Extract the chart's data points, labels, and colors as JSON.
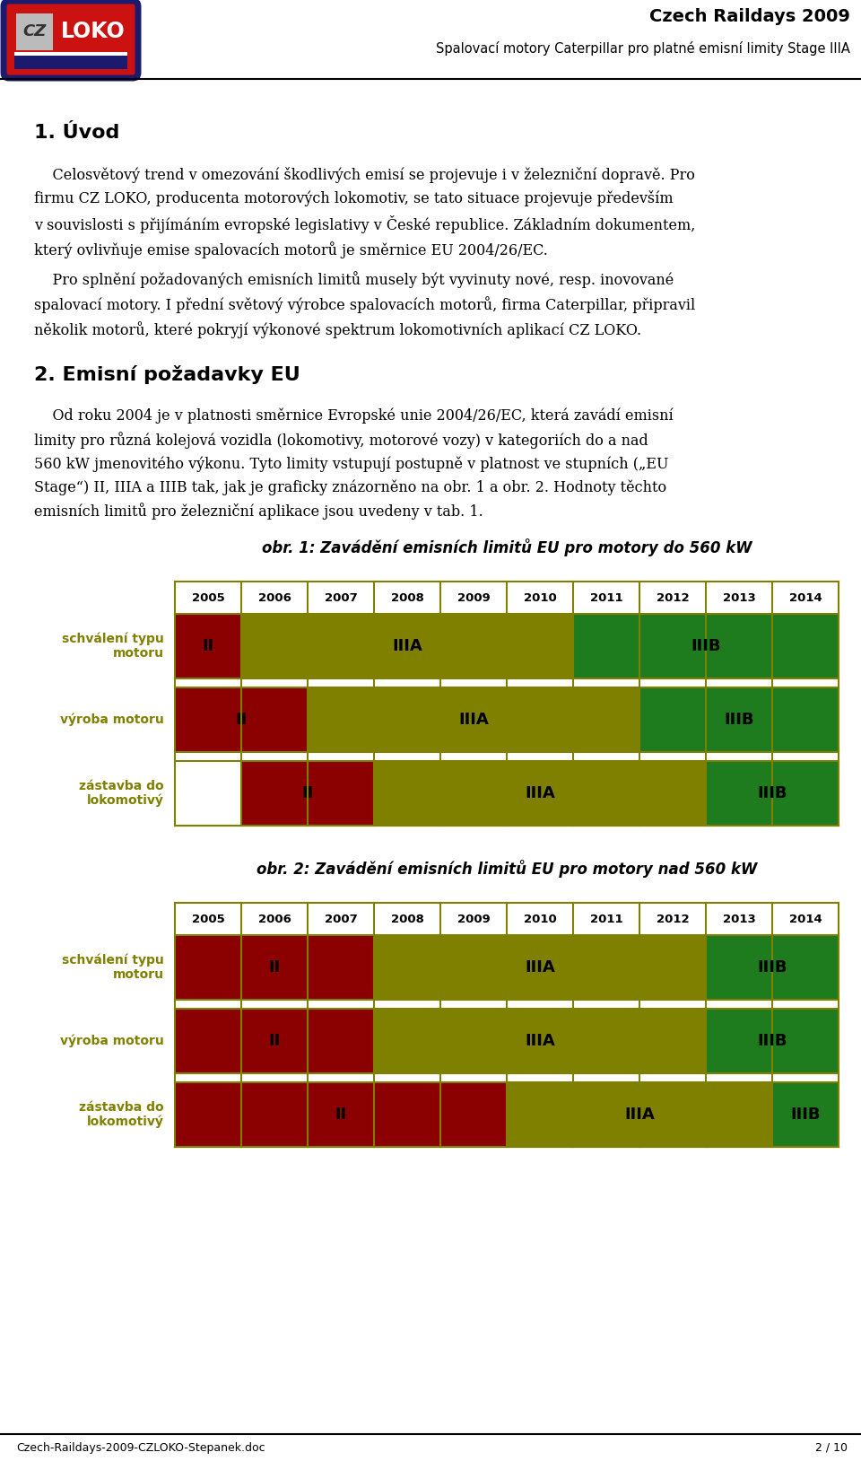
{
  "header_title": "Czech Raildays 2009",
  "header_subtitle": "Spalovací motory Caterpillar pro platné emisní limity Stage IIIA",
  "section1_title": "1. Úvod",
  "section2_title": "2. Emisní požadavky EU",
  "footer_left": "Czech-Raildays-2009-CZLOKO-Stepanek.doc",
  "footer_right": "2 / 10",
  "chart1_title": "obr. 1: Zavádění emisních limitů EU pro motory do 560 kW",
  "chart2_title": "obr. 2: Zavádění emisních limitů EU pro motory nad 560 kW",
  "years": [
    "2005",
    "2006",
    "2007",
    "2008",
    "2009",
    "2010",
    "2011",
    "2012",
    "2013",
    "2014"
  ],
  "row_labels": [
    "schválení typu\nmotoru",
    "výroba motoru",
    "zástavba do\nlokomotivý"
  ],
  "color_red": "#8B0000",
  "color_olive": "#808000",
  "color_green": "#1E7B1E",
  "color_label": "#808000",
  "color_line": "#808000",
  "chart1": [
    [
      {
        "label": "II",
        "color": "#8B0000",
        "start": 0,
        "end": 1
      },
      {
        "label": "IIIA",
        "color": "#808000",
        "start": 1,
        "end": 6
      },
      {
        "label": "IIIB",
        "color": "#1E7B1E",
        "start": 6,
        "end": 10
      }
    ],
    [
      {
        "label": "II",
        "color": "#8B0000",
        "start": 0,
        "end": 2
      },
      {
        "label": "IIIA",
        "color": "#808000",
        "start": 2,
        "end": 7
      },
      {
        "label": "IIIB",
        "color": "#1E7B1E",
        "start": 7,
        "end": 10
      }
    ],
    [
      {
        "label": "II",
        "color": "#8B0000",
        "start": 1,
        "end": 3
      },
      {
        "label": "IIIA",
        "color": "#808000",
        "start": 3,
        "end": 8
      },
      {
        "label": "IIIB",
        "color": "#1E7B1E",
        "start": 8,
        "end": 10
      }
    ]
  ],
  "chart2": [
    [
      {
        "label": "II",
        "color": "#8B0000",
        "start": 0,
        "end": 3
      },
      {
        "label": "IIIA",
        "color": "#808000",
        "start": 3,
        "end": 8
      },
      {
        "label": "IIIB",
        "color": "#1E7B1E",
        "start": 8,
        "end": 10
      }
    ],
    [
      {
        "label": "II",
        "color": "#8B0000",
        "start": 0,
        "end": 3
      },
      {
        "label": "IIIA",
        "color": "#808000",
        "start": 3,
        "end": 8
      },
      {
        "label": "IIIB",
        "color": "#1E7B1E",
        "start": 8,
        "end": 10
      }
    ],
    [
      {
        "label": "II",
        "color": "#8B0000",
        "start": 0,
        "end": 5
      },
      {
        "label": "IIIA",
        "color": "#808000",
        "start": 5,
        "end": 9
      },
      {
        "label": "IIIB",
        "color": "#1E7B1E",
        "start": 9,
        "end": 10
      }
    ]
  ],
  "para1": "    Celosvětový trend v omezování škodlivých emisí se projevuje i v železniční dopravě. Pro\nfirmu CZ LOKO, producenta motorových lokomotiv, se tato situace projevuje především\nv souvislosti s přijímáním evropské legislativy v České republice. Základním dokumentem,\nkterý ovlivňuje emise spalovacích motorů je směrnice EU 2004/26/EC.",
  "para2": "    Pro splnění požadovaných emisních limitů musely být vyvinuty nové, resp. inovované\nspalovací motory. I přední světový výrobce spalovacích motorů, firma Caterpillar, připravil\nněkolik motorů, které pokryjí výkonové spektrum lokomotivních aplikací CZ LOKO.",
  "para3": "    Od roku 2004 je v platnosti směrnice Evropské unie 2004/26/EC, která zavádí emisní\nlimity pro různá kolejová vozidla (lokomotivy, motorové vozy) v kategoriích do a nad\n560 kW jmenovitého výkonu. Tyto limity vstupují postupně v platnost ve stupních („EU\nStage“) II, IIIA a IIIB tak, jak je graficky znázorněno na obr. 1 a obr. 2. Hodnoty těchto\nemisních limitů pro železniční aplikace jsou uvedeny v tab. 1."
}
